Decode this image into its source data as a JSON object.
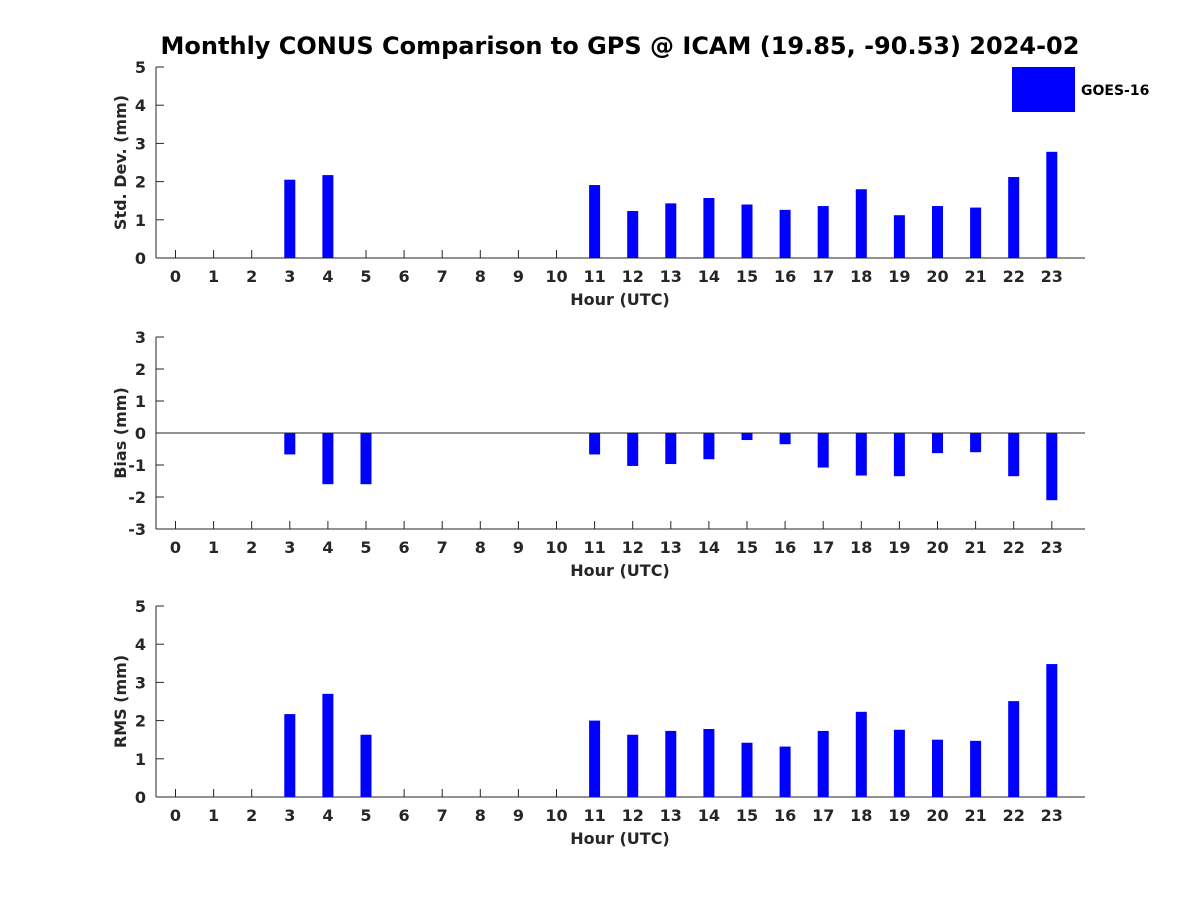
{
  "title": "Monthly CONUS Comparison to GPS @ ICAM (19.85, -90.53) 2024-02",
  "legend": {
    "label": "GOES-16",
    "color": "#0000ff"
  },
  "chart_data": [
    {
      "type": "bar",
      "name": "std-dev",
      "ylabel": "Std. Dev. (mm)",
      "xlabel": "Hour (UTC)",
      "categories": [
        "0",
        "1",
        "2",
        "3",
        "4",
        "5",
        "6",
        "7",
        "8",
        "9",
        "10",
        "11",
        "12",
        "13",
        "14",
        "15",
        "16",
        "17",
        "18",
        "19",
        "20",
        "21",
        "22",
        "23"
      ],
      "values": [
        null,
        null,
        null,
        2.05,
        2.17,
        null,
        null,
        null,
        null,
        null,
        null,
        1.91,
        1.23,
        1.43,
        1.57,
        1.4,
        1.26,
        1.36,
        1.8,
        1.12,
        1.36,
        1.32,
        2.12,
        2.78
      ],
      "ylim": [
        0,
        5
      ],
      "yticks": [
        "0",
        "1",
        "2",
        "3",
        "4",
        "5"
      ],
      "zero_line": false,
      "series": [
        {
          "name": "GOES-16"
        }
      ]
    },
    {
      "type": "bar",
      "name": "bias",
      "ylabel": "Bias (mm)",
      "xlabel": "Hour (UTC)",
      "categories": [
        "0",
        "1",
        "2",
        "3",
        "4",
        "5",
        "6",
        "7",
        "8",
        "9",
        "10",
        "11",
        "12",
        "13",
        "14",
        "15",
        "16",
        "17",
        "18",
        "19",
        "20",
        "21",
        "22",
        "23"
      ],
      "values": [
        null,
        null,
        null,
        -0.67,
        -1.6,
        -1.6,
        null,
        null,
        null,
        null,
        null,
        -0.67,
        -1.03,
        -0.97,
        -0.82,
        -0.22,
        -0.35,
        -1.08,
        -1.33,
        -1.35,
        -0.63,
        -0.6,
        -1.35,
        -2.1
      ],
      "ylim": [
        -3,
        3
      ],
      "yticks": [
        "-3",
        "-2",
        "-1",
        "0",
        "1",
        "2",
        "3"
      ],
      "zero_line": true,
      "series": [
        {
          "name": "GOES-16"
        }
      ]
    },
    {
      "type": "bar",
      "name": "rms",
      "ylabel": "RMS (mm)",
      "xlabel": "Hour (UTC)",
      "categories": [
        "0",
        "1",
        "2",
        "3",
        "4",
        "5",
        "6",
        "7",
        "8",
        "9",
        "10",
        "11",
        "12",
        "13",
        "14",
        "15",
        "16",
        "17",
        "18",
        "19",
        "20",
        "21",
        "22",
        "23"
      ],
      "values": [
        null,
        null,
        null,
        2.17,
        2.7,
        1.63,
        null,
        null,
        null,
        null,
        null,
        2.0,
        1.63,
        1.73,
        1.78,
        1.42,
        1.32,
        1.73,
        2.23,
        1.76,
        1.5,
        1.47,
        2.51,
        3.48
      ],
      "ylim": [
        0,
        5
      ],
      "yticks": [
        "0",
        "1",
        "2",
        "3",
        "4",
        "5"
      ],
      "zero_line": false,
      "series": [
        {
          "name": "GOES-16"
        }
      ]
    }
  ]
}
